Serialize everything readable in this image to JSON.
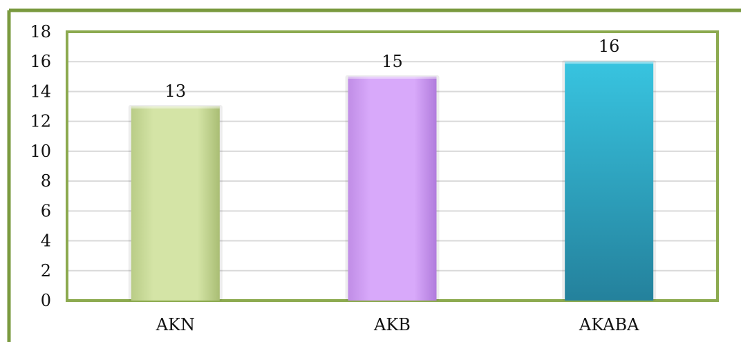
{
  "chart_data": {
    "type": "bar",
    "categories": [
      "AKN",
      "AKB",
      "AKABA"
    ],
    "values": [
      13,
      15,
      16
    ],
    "data_labels": [
      "13",
      "15",
      "16"
    ],
    "ylim": [
      0,
      18
    ],
    "yticks": [
      "0",
      "2",
      "4",
      "6",
      "8",
      "10",
      "12",
      "14",
      "16",
      "18"
    ],
    "grid": true,
    "legend": "none",
    "bar_colors": [
      "#cfe0a0",
      "#d6a6f7",
      "#2fb0cc"
    ],
    "frame_color": "#8caa4f",
    "gridline_color": "#d9d9d9"
  }
}
